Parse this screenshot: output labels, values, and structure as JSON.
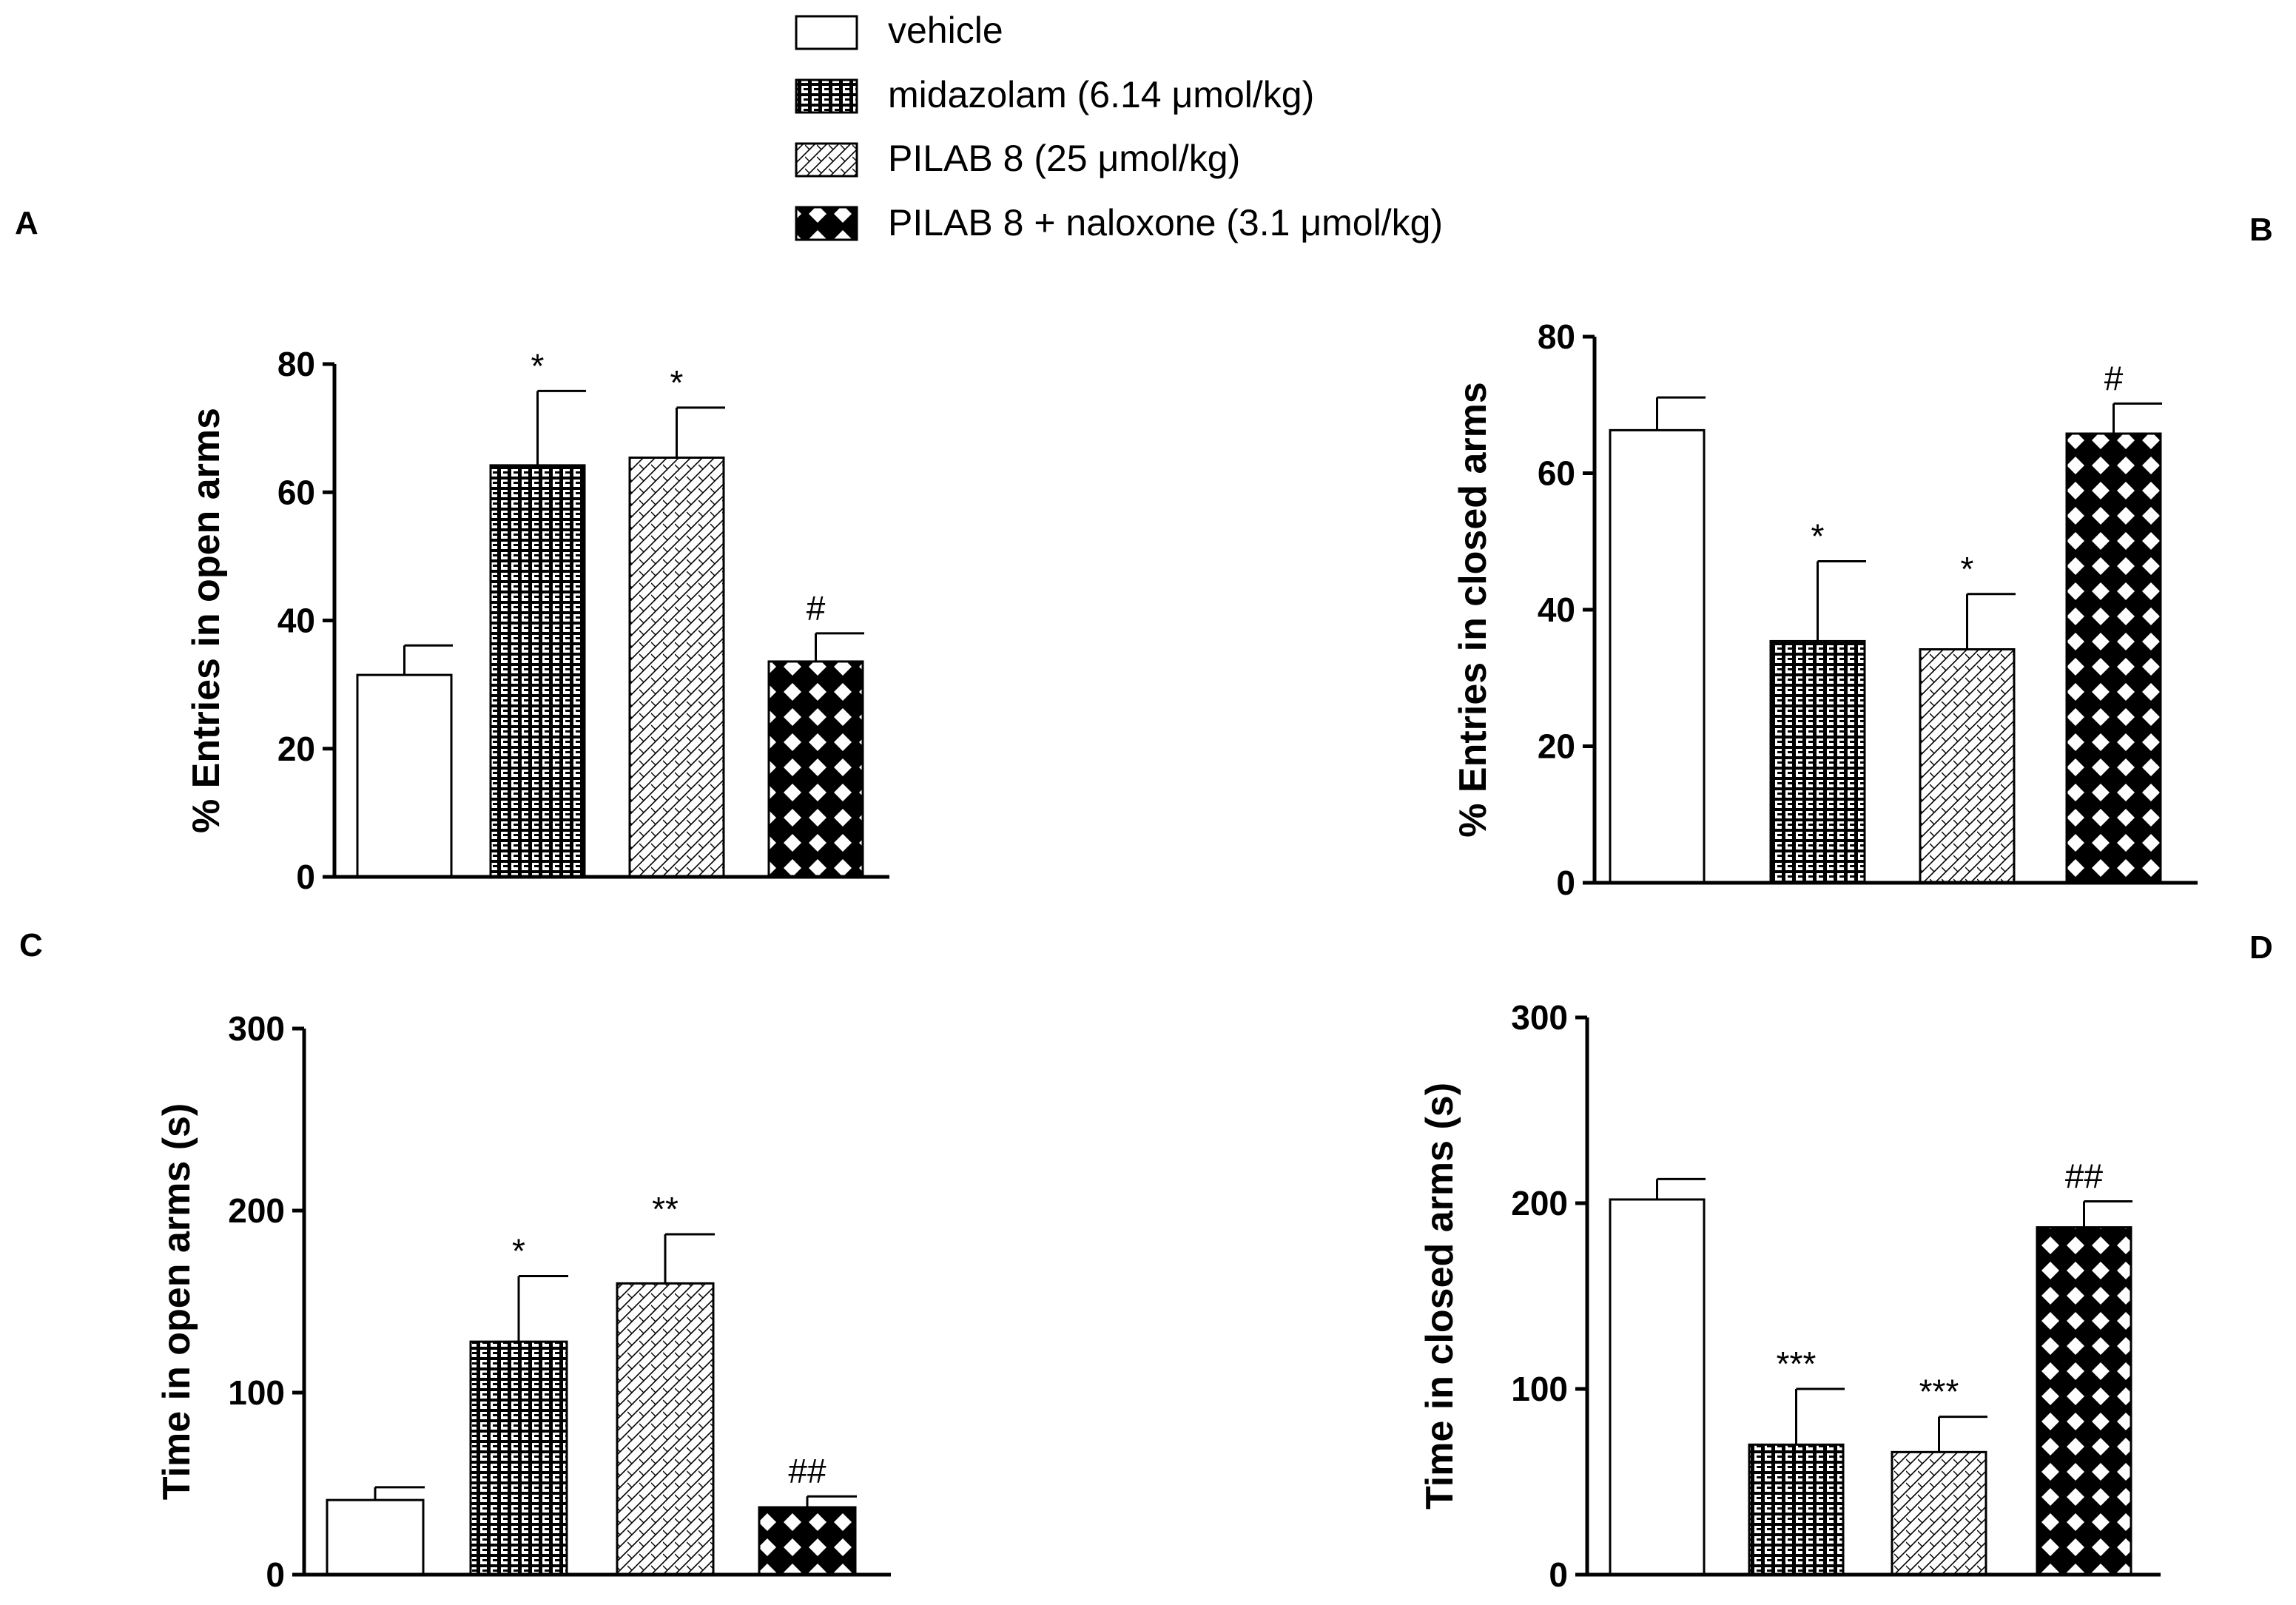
{
  "legend": [
    {
      "label": "vehicle",
      "pattern": "white"
    },
    {
      "label": "midazolam (6.14  μmol/kg)",
      "pattern": "grid"
    },
    {
      "label": "PILAB 8 (25  μmol/kg)",
      "pattern": "diag"
    },
    {
      "label": "PILAB 8 + naloxone (3.1  μmol/kg)",
      "pattern": "cross"
    }
  ],
  "chart_data": [
    {
      "panel": "A",
      "type": "bar",
      "categories": [
        "vehicle",
        "midazolam (6.14  μmol/kg)",
        "PILAB 8 (25  μmol/kg)",
        "PILAB 8 + naloxone (3.1  μmol/kg)"
      ],
      "values": [
        31.5,
        64.2,
        65.4,
        33.6
      ],
      "errors": [
        4.6,
        11.6,
        7.8,
        4.4
      ],
      "significance": [
        "",
        "*",
        "*",
        "#"
      ],
      "ylabel": "% Entries in open arms",
      "ylim": [
        0,
        80
      ],
      "yticks": [
        0,
        20,
        40,
        60,
        80
      ]
    },
    {
      "panel": "B",
      "type": "bar",
      "categories": [
        "vehicle",
        "midazolam (6.14  μmol/kg)",
        "PILAB 8 (25  μmol/kg)",
        "PILAB 8 + naloxone (3.1  μmol/kg)"
      ],
      "values": [
        66.3,
        35.4,
        34.2,
        65.8
      ],
      "errors": [
        4.8,
        11.7,
        8.1,
        4.4
      ],
      "significance": [
        "",
        "*",
        "*",
        "#"
      ],
      "ylabel": "% Entries in closed arms",
      "ylim": [
        0,
        80
      ],
      "yticks": [
        0,
        20,
        40,
        60,
        80
      ]
    },
    {
      "panel": "C",
      "type": "bar",
      "categories": [
        "vehicle",
        "midazolam (6.14  μmol/kg)",
        "PILAB 8 (25  μmol/kg)",
        "PILAB 8 + naloxone (3.1  μmol/kg)"
      ],
      "values": [
        41,
        128,
        160,
        37
      ],
      "errors": [
        7,
        36,
        27,
        6
      ],
      "significance": [
        "",
        "*",
        "**",
        "##"
      ],
      "ylabel": "Time in open arms (s)",
      "ylim": [
        0,
        300
      ],
      "yticks": [
        0,
        100,
        200,
        300
      ]
    },
    {
      "panel": "D",
      "type": "bar",
      "categories": [
        "vehicle",
        "midazolam (6.14  μmol/kg)",
        "PILAB 8 (25  μmol/kg)",
        "PILAB 8 + naloxone (3.1  μmol/kg)"
      ],
      "values": [
        202,
        70,
        66,
        187
      ],
      "errors": [
        11,
        30,
        19,
        14
      ],
      "significance": [
        "",
        "***",
        "***",
        "##"
      ],
      "ylabel": "Time in closed arms (s)",
      "ylim": [
        0,
        300
      ],
      "yticks": [
        0,
        100,
        200,
        300
      ]
    }
  ]
}
